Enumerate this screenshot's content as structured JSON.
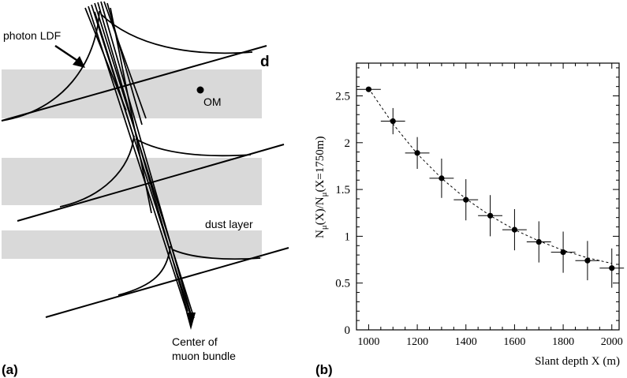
{
  "panel_a": {
    "label": "(a)",
    "photon_ldf_label": "photon LDF",
    "d_label": "d",
    "om_label": "OM",
    "dust_layer_label": "dust layer",
    "center_label_line1": "Center of",
    "center_label_line2": "muon bundle",
    "dust_band_color": "#d9d9d9"
  },
  "panel_b": {
    "label": "(b)",
    "chart_data": {
      "type": "scatter",
      "xlabel": "Slant depth X (m)",
      "ylabel_main": "N",
      "ylabel_sub": "μ",
      "ylabel_mid": "(X)/N",
      "ylabel_sub2": "μ",
      "ylabel_end": "(X=1750m)",
      "xlim": [
        950,
        2030
      ],
      "ylim": [
        0,
        2.85
      ],
      "x_ticks": [
        1000,
        1200,
        1400,
        1600,
        1800,
        2000
      ],
      "y_ticks": [
        0,
        0.5,
        1,
        1.5,
        2,
        2.5
      ],
      "y_tick_labels": [
        "0",
        "0.5",
        "1",
        "1.5",
        "2",
        "2.5"
      ],
      "grid": false,
      "series": [
        {
          "x": [
            1000,
            1100,
            1200,
            1300,
            1400,
            1500,
            1600,
            1700,
            1800,
            1900,
            2000
          ],
          "y": [
            2.57,
            2.23,
            1.89,
            1.62,
            1.39,
            1.22,
            1.07,
            0.94,
            0.83,
            0.74,
            0.66
          ],
          "yerr": [
            0.02,
            0.14,
            0.17,
            0.21,
            0.22,
            0.22,
            0.22,
            0.22,
            0.22,
            0.21,
            0.21
          ],
          "xerr": [
            50,
            50,
            50,
            50,
            50,
            50,
            50,
            50,
            50,
            50,
            50
          ]
        }
      ],
      "fit": {
        "x": [
          1000,
          1100,
          1200,
          1300,
          1400,
          1500,
          1600,
          1700,
          1800,
          1900,
          2000
        ],
        "y": [
          2.58,
          2.2,
          1.88,
          1.62,
          1.4,
          1.22,
          1.07,
          0.95,
          0.85,
          0.77,
          0.71
        ],
        "style": "dashed"
      }
    }
  }
}
